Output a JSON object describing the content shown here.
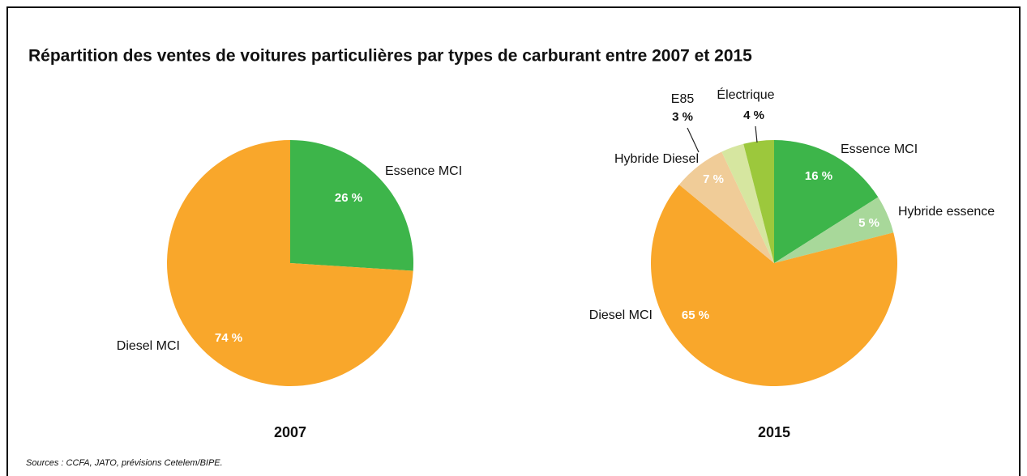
{
  "title": "Répartition des ventes de voitures particulières par types de carburant entre 2007 et 2015",
  "source": "Sources : CCFA, JATO, prévisions Cetelem/BIPE.",
  "chart_data": [
    {
      "type": "pie",
      "title": "2007",
      "categories": [
        "Essence MCI",
        "Diesel MCI"
      ],
      "values": [
        26,
        74
      ],
      "value_labels": [
        "26 %",
        "74 %"
      ],
      "colors": [
        "#3db54a",
        "#f9a72b"
      ]
    },
    {
      "type": "pie",
      "title": "2015",
      "categories": [
        "Essence MCI",
        "Hybride essence",
        "Diesel MCI",
        "Hybride Diesel",
        "E85",
        "Électrique"
      ],
      "values": [
        16,
        5,
        65,
        7,
        3,
        4
      ],
      "value_labels": [
        "16 %",
        "5 %",
        "65 %",
        "7 %",
        "3 %",
        "4 %"
      ],
      "colors": [
        "#3db54a",
        "#a8d89a",
        "#f9a72b",
        "#f0cc98",
        "#d6e6a0",
        "#9cc83c"
      ]
    }
  ]
}
